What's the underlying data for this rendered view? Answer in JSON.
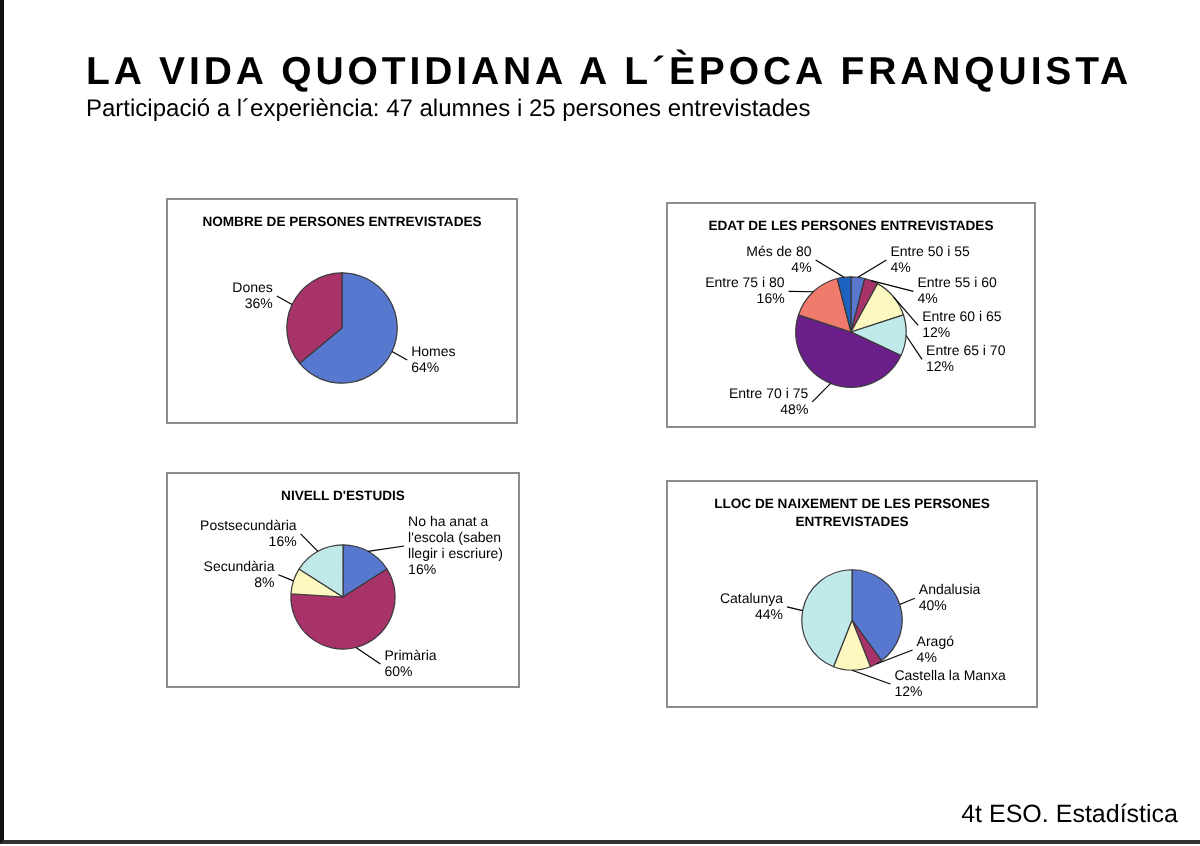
{
  "chart_data": [
    {
      "type": "other",
      "title": "LA VIDA QUOTIDIANA A L´ÈPOCA FRANQUISTA",
      "subtitle": "Participació a l´experiència: 47 alumnes i 25 persones entrevistades"
    },
    {
      "type": "pie",
      "title": "NOMBRE DE PERSONES ENTREVISTADES",
      "categories": [
        "Homes",
        "Dones"
      ],
      "values": [
        64,
        36
      ],
      "colors": [
        "#5877cf",
        "#a8336b"
      ],
      "value_labels": [
        "64%",
        "36%"
      ]
    },
    {
      "type": "pie",
      "title": "EDAT DE LES PERSONES ENTREVISTADES",
      "categories": [
        "Entre 50 i 55",
        "Entre 55 i 60",
        "Entre 60 i 65",
        "Entre 65 i 70",
        "Entre 70 i 75",
        "Entre 75 i 80",
        "Més de 80"
      ],
      "values": [
        4,
        4,
        12,
        12,
        48,
        16,
        4
      ],
      "colors": [
        "#5877cf",
        "#a8336b",
        "#fcf8c0",
        "#c0eaea",
        "#6b1f8a",
        "#f07b6c",
        "#1d62c0"
      ],
      "value_labels": [
        "4%",
        "4%",
        "12%",
        "12%",
        "48%",
        "16%",
        "4%"
      ]
    },
    {
      "type": "pie",
      "title": "NIVELL D'ESTUDIS",
      "categories": [
        "No ha anat a l'escola (saben llegir i escriure)",
        "Primària",
        "Secundària",
        "Postsecundària"
      ],
      "values": [
        16,
        60,
        8,
        16
      ],
      "colors": [
        "#5877cf",
        "#a8336b",
        "#fcf8c0",
        "#c0eaea"
      ],
      "value_labels": [
        "16%",
        "60%",
        "8%",
        "16%"
      ]
    },
    {
      "type": "pie",
      "title": "LLOC DE NAIXEMENT DE LES PERSONES ENTREVISTADES",
      "categories": [
        "Andalusia",
        "Aragó",
        "Castella la Manxa",
        "Catalunya"
      ],
      "values": [
        40,
        4,
        12,
        44
      ],
      "colors": [
        "#5877cf",
        "#a8336b",
        "#fcf8c0",
        "#c0eaea"
      ],
      "value_labels": [
        "40%",
        "4%",
        "12%",
        "44%"
      ]
    },
    {
      "type": "other",
      "annotations": [
        "4t ESO. Estadística"
      ]
    }
  ]
}
